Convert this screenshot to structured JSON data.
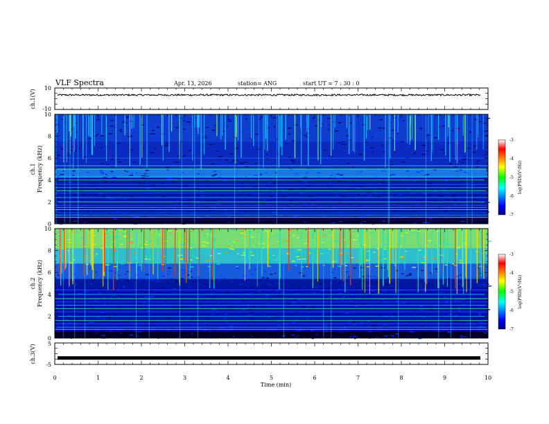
{
  "header": {
    "title": "VLF Spectra",
    "date": "Apr. 13, 2026",
    "station": "station= ANG",
    "start": "start  UT =   7 : 30 : 0"
  },
  "chart_data": [
    {
      "type": "line",
      "name": "ch1-voltage",
      "ylabel": "ch.1(V)",
      "ylim": [
        -10,
        10
      ],
      "ytick_labels": [
        "10",
        "-10"
      ],
      "description_value": "noisy trace near 3.5 V",
      "level": 3.5
    },
    {
      "type": "heatmap",
      "name": "ch1-spectrogram",
      "ylabel": "ch.1",
      "ylabel2": "Frequency (kHz)",
      "ylim": [
        0,
        10
      ],
      "ytick_labels": [
        "0",
        "2",
        "4",
        "6",
        "8",
        "10"
      ],
      "colorbar": {
        "label": "log(PSD)(V²/Hz)",
        "range": [
          -7,
          -3
        ],
        "tick_labels": [
          "-3",
          "-4",
          "-5",
          "-6",
          "-7"
        ]
      },
      "bands_khz": [
        0.6,
        0.8,
        1.0,
        1.3,
        1.5,
        1.7,
        2.0,
        2.4,
        2.8,
        3.0,
        3.3,
        3.6,
        4.0,
        4.3,
        4.6,
        5.0,
        5.3,
        6.0
      ]
    },
    {
      "type": "heatmap",
      "name": "ch2-spectrogram",
      "ylabel": "ch.2",
      "ylabel2": "Frequency (kHz)",
      "ylim": [
        0,
        10
      ],
      "ytick_labels": [
        "0",
        "2",
        "4",
        "6",
        "8",
        "10"
      ],
      "colorbar": {
        "label": "log(PSD)(V²/Hz)",
        "range": [
          -7,
          -3
        ],
        "tick_labels": [
          "-3",
          "-4",
          "-5",
          "-6",
          "-7"
        ]
      },
      "bands_khz": [
        0.8,
        1.0,
        1.3,
        1.6,
        2.0,
        2.4,
        2.7,
        3.0,
        3.3,
        3.6,
        4.0,
        4.4
      ]
    },
    {
      "type": "line",
      "name": "ch3-voltage",
      "ylabel": "ch.3(V)",
      "ylim": [
        -5,
        5
      ],
      "ytick_labels": [
        "5",
        "-5"
      ],
      "level": -2.0
    }
  ],
  "xaxis": {
    "label": "Time  (min)",
    "range": [
      0,
      10
    ],
    "tick_labels": [
      "0",
      "1",
      "2",
      "3",
      "4",
      "5",
      "6",
      "7",
      "8",
      "9",
      "10"
    ]
  },
  "colors": {
    "spec_low": "#00007f",
    "spec_high": "#ff0000",
    "background": "#ffffff"
  }
}
